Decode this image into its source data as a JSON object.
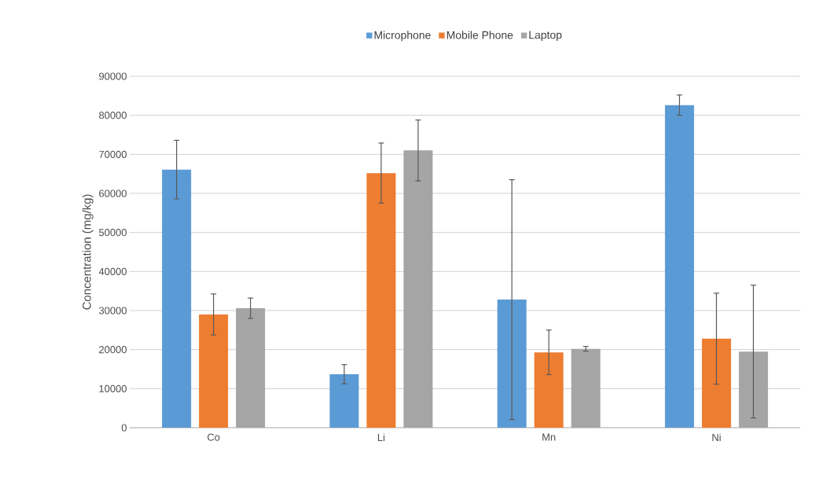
{
  "chart_data": {
    "type": "bar",
    "ylabel": "Concentration (mg/kg)",
    "categories": [
      "Co",
      "Li",
      "Mn",
      "Ni"
    ],
    "series": [
      {
        "name": "Microphone",
        "color": "#5b9bd5",
        "values": [
          66100,
          13700,
          32800,
          82600
        ],
        "errors": [
          7500,
          2450,
          30700,
          2600
        ]
      },
      {
        "name": "Mobile Phone",
        "color": "#ed7d31",
        "values": [
          29000,
          65200,
          19300,
          22800
        ],
        "errors": [
          5250,
          7700,
          5700,
          11650
        ]
      },
      {
        "name": "Laptop",
        "color": "#a5a5a5",
        "values": [
          30600,
          71000,
          20200,
          19500
        ],
        "errors": [
          2600,
          7800,
          600,
          17000
        ]
      }
    ],
    "ylim": [
      0,
      90000
    ],
    "yticks": [
      0,
      10000,
      20000,
      30000,
      40000,
      50000,
      60000,
      70000,
      80000,
      90000
    ],
    "grid": "y",
    "legend": "top"
  }
}
